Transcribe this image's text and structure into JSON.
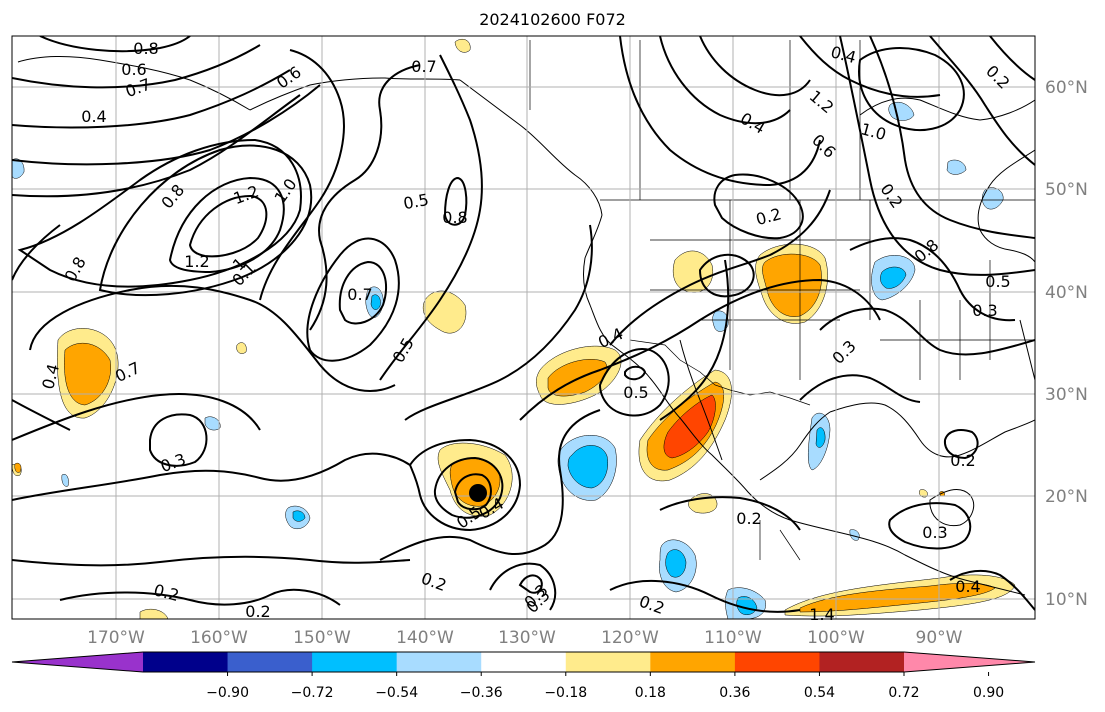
{
  "title": "2024102600 F072",
  "map": {
    "lat_labels": [
      "60°N",
      "50°N",
      "40°N",
      "30°N",
      "20°N",
      "10°N"
    ],
    "lon_labels": [
      "170°W",
      "160°W",
      "150°W",
      "140°W",
      "130°W",
      "120°W",
      "110°W",
      "100°W",
      "90°W"
    ],
    "contour_labels": [
      "0.8",
      "0.6",
      "0.7",
      "0.4",
      "0.6",
      "0.8",
      "0.7",
      "0.5",
      "0.8",
      "1.2",
      "1.0",
      "1.2",
      "1",
      "0.8",
      "0.7",
      "0.7",
      "0.5",
      "0.4",
      "0.4",
      "0.3",
      "0.5",
      "0.4",
      "0.5",
      "0.2",
      "0.2",
      "0.2",
      "0.2",
      "0.3",
      "0.4",
      "0.2",
      "0.2",
      "1.4",
      "1.2",
      "1.0",
      "0.6",
      "0.4",
      "0.2",
      "0.8",
      "0.5",
      "0.3",
      "0.3",
      "0.2",
      "0.3",
      "0.2",
      "0.1",
      "0.4",
      "0.3"
    ],
    "filled_color_key": {
      "weak_positive": "#ffeb8c",
      "moderate_positive": "#ffa500",
      "strong_positive": "#ff4500",
      "weak_negative": "#a8dcff",
      "moderate_negative": "#00bfff"
    },
    "storm_marker": "hurricane-center-dot"
  },
  "colorbar": {
    "colors": [
      "#9932cc",
      "#00008b",
      "#3a5fcd",
      "#00bfff",
      "#a8dcff",
      "#ffffff",
      "#ffeb8c",
      "#ffa500",
      "#ff4500",
      "#b22222",
      "#ff88aa"
    ],
    "tick_labels": [
      "−0.90",
      "−0.72",
      "−0.54",
      "−0.36",
      "−0.18",
      "0.18",
      "0.36",
      "0.54",
      "0.72",
      "0.90"
    ]
  }
}
